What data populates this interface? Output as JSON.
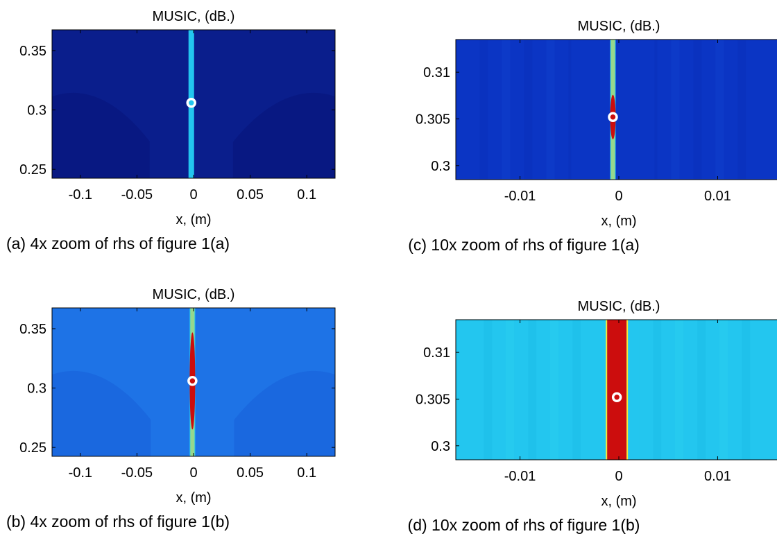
{
  "colors": {
    "navy": "#0a1e8c",
    "blue": "#0b35c4",
    "light_blue": "#1e73e6",
    "cyan": "#23c6ef",
    "yellow": "#f5e83a",
    "red": "#cc0d0d",
    "marker": "#ffffff"
  },
  "chart_data": [
    {
      "id": "a",
      "type": "heatmap",
      "title": "MUSIC, (dB.)",
      "xlabel": "x, (m)",
      "ylabel": "",
      "caption": "(a) 4x zoom of rhs of figure 1(a)",
      "xlim": [
        -0.125,
        0.125
      ],
      "ylim": [
        0.2425,
        0.3675
      ],
      "xticks": [
        -0.1,
        -0.05,
        0,
        0.05,
        0.1
      ],
      "xtick_labels": [
        "-0.1",
        "-0.05",
        "0",
        "0.05",
        "0.1"
      ],
      "yticks": [
        0.25,
        0.3,
        0.35
      ],
      "ytick_labels": [
        "0.25",
        "0.3",
        "0.35"
      ],
      "background": "navy",
      "peak_x": -0.002,
      "peak_color": "cyan",
      "source_marker": {
        "x": -0.002,
        "y": 0.306
      }
    },
    {
      "id": "c",
      "type": "heatmap",
      "title": "MUSIC, (dB.)",
      "xlabel": "x, (m)",
      "ylabel": "",
      "caption": "(c) 10x zoom of rhs of figure 1(a)",
      "xlim": [
        -0.0165,
        0.0165
      ],
      "ylim": [
        0.2985,
        0.3135
      ],
      "xticks": [
        -0.01,
        0,
        0.01
      ],
      "xtick_labels": [
        "-0.01",
        "0",
        "0.01"
      ],
      "yticks": [
        0.3,
        0.305,
        0.31
      ],
      "ytick_labels": [
        "0.3",
        "0.305",
        "0.31"
      ],
      "background": "blue",
      "peak_x": -0.0006,
      "peak_color": "red",
      "source_marker": {
        "x": -0.0006,
        "y": 0.3052
      }
    },
    {
      "id": "b",
      "type": "heatmap",
      "title": "MUSIC, (dB.)",
      "xlabel": "x, (m)",
      "ylabel": "",
      "caption": "(b) 4x zoom of rhs of figure 1(b)",
      "xlim": [
        -0.125,
        0.125
      ],
      "ylim": [
        0.2425,
        0.3675
      ],
      "xticks": [
        -0.1,
        -0.05,
        0,
        0.05,
        0.1
      ],
      "xtick_labels": [
        "-0.1",
        "-0.05",
        "0",
        "0.05",
        "0.1"
      ],
      "yticks": [
        0.25,
        0.3,
        0.35
      ],
      "ytick_labels": [
        "0.25",
        "0.3",
        "0.35"
      ],
      "background": "light_blue",
      "peak_x": -0.001,
      "peak_color": "red",
      "source_marker": {
        "x": -0.001,
        "y": 0.306
      }
    },
    {
      "id": "d",
      "type": "heatmap",
      "title": "MUSIC, (dB.)",
      "xlabel": "x, (m)",
      "ylabel": "",
      "caption": "(d) 10x zoom of rhs of figure 1(b)",
      "xlim": [
        -0.0165,
        0.0165
      ],
      "ylim": [
        0.2985,
        0.3135
      ],
      "xticks": [
        -0.01,
        0,
        0.01
      ],
      "xtick_labels": [
        "-0.01",
        "0",
        "0.01"
      ],
      "yticks": [
        0.3,
        0.305,
        0.31
      ],
      "ytick_labels": [
        "0.3",
        "0.305",
        "0.31"
      ],
      "background": "cyan",
      "peak_x": -0.0002,
      "peak_color": "red",
      "source_marker": {
        "x": -0.0002,
        "y": 0.3052
      }
    }
  ]
}
